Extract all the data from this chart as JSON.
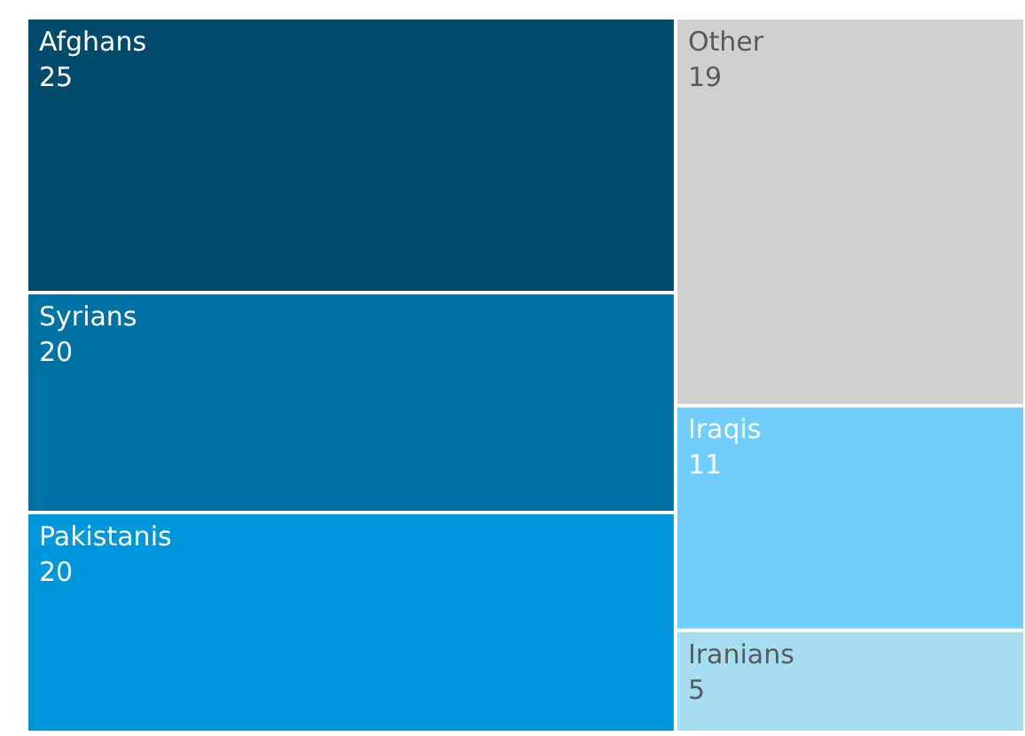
{
  "chart_data": {
    "type": "other",
    "categories": [
      "Afghans",
      "Syrians",
      "Pakistanis",
      "Other",
      "Iraqis",
      "Iranians"
    ],
    "values": [
      25,
      20,
      20,
      19,
      11,
      5
    ],
    "colors": [
      "#004b6b",
      "#0072a3",
      "#0097dc",
      "#d0d0d0",
      "#70cdfc",
      "#a5def0"
    ],
    "data_labels": true
  }
}
